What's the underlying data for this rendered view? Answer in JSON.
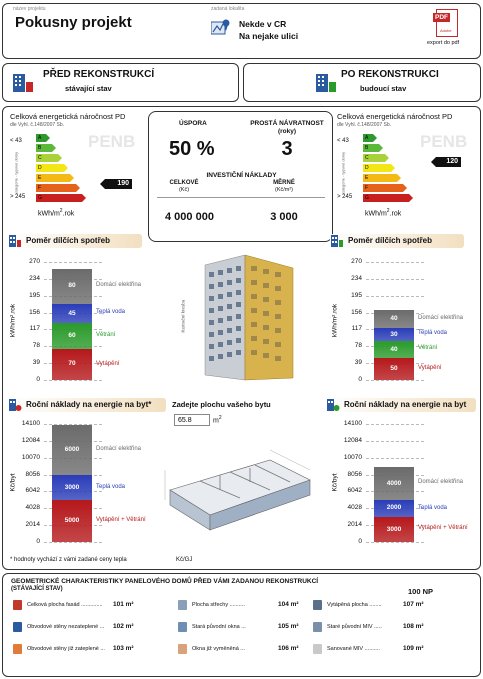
{
  "header": {
    "project_caption": "název projektu",
    "project_name": "Pokusny projekt",
    "location_caption": "zadaná lokalita",
    "location_line1": "Nekde v CR",
    "location_line2": "Na nejake ulici",
    "export_label": "export do pdf",
    "pdf_icon_text": "PDF",
    "adobe_text": "Adobe"
  },
  "sections": {
    "before_title": "PŘED REKONSTRUKCÍ",
    "before_subtitle": "stávající stav",
    "after_title": "PO REKONSTRUKCI",
    "after_subtitle": "budoucí stav"
  },
  "energy": {
    "title": "Celková energetická náročnost PD",
    "decree": "dle Vyhl. č.148/2007 Sb.",
    "class_top": "< 43",
    "class_bottom": "> 245",
    "side_label": "kategorie - typové domy",
    "watermark": "PENB",
    "unit": "kWh/m",
    "unit_tail": ".rok",
    "classes": [
      "A",
      "B",
      "C",
      "D",
      "E",
      "F",
      "G"
    ],
    "class_colors": [
      "#2e9a2e",
      "#5bb83a",
      "#a8d13a",
      "#f2e614",
      "#f5b915",
      "#e6621b",
      "#c81f1f"
    ],
    "before_value": "190",
    "after_value": "120"
  },
  "summary": {
    "savings_label": "ÚSPORA",
    "payback_label": "PROSTÁ NÁVRATNOST",
    "payback_unit": "(roky)",
    "savings_value": "50 %",
    "payback_value": "3",
    "investment_label": "INVESTIČNÍ NÁKLADY",
    "total_label": "CELKOVÉ",
    "total_unit": "(Kč)",
    "specific_label": "MĚRNÉ",
    "specific_unit": "(Kč/m²)",
    "total_value": "4 000 000",
    "specific_value": "3 000"
  },
  "consumption": {
    "title": "Poměr dílčích spotřeb",
    "ylabel": "kWh/m².rok",
    "yticks": [
      "270",
      "234",
      "195",
      "156",
      "117",
      "78",
      "39",
      "0"
    ],
    "legend": [
      "Domácí elektřina",
      "Teplá voda",
      "Větrání",
      "Vytápění"
    ],
    "image_caption": "ilustrační kresba"
  },
  "costs": {
    "title": "Roční náklady na energie na byt",
    "title_before_suffix": "*",
    "ylabel": "Kč/byt",
    "yticks": [
      "14100",
      "12084",
      "10070",
      "8056",
      "6042",
      "4028",
      "2014",
      "0"
    ],
    "legend": [
      "Domácí elektřina",
      "Teplá voda",
      "Vytápění + Větrání"
    ],
    "area_prompt": "Zadejte plochu vašeho bytu",
    "area_value": "65.8",
    "area_unit": "m",
    "footnote": "* hodnoty vychází z vámi zadané ceny tepla",
    "currency_per": "Kč/GJ"
  },
  "chart_data": [
    {
      "type": "bar",
      "stacked": true,
      "title": "Poměr dílčích spotřeb",
      "ylabel": "kWh/m².rok",
      "ylim": [
        0,
        270
      ],
      "categories": [
        "PŘED REKONSTRUKCÍ"
      ],
      "series": [
        {
          "name": "Vytápění",
          "values": [
            70
          ],
          "color": "#b5181b"
        },
        {
          "name": "Větrání",
          "values": [
            60
          ],
          "color": "#2a9a2a"
        },
        {
          "name": "Teplá voda",
          "values": [
            45
          ],
          "color": "#2a3db8"
        },
        {
          "name": "Domácí elektřina",
          "values": [
            80
          ],
          "color": "#6b6b6b"
        }
      ]
    },
    {
      "type": "bar",
      "stacked": true,
      "title": "Poměr dílčích spotřeb",
      "ylabel": "kWh/m².rok",
      "ylim": [
        0,
        270
      ],
      "categories": [
        "PO REKONSTRUKCI"
      ],
      "series": [
        {
          "name": "Vytápění",
          "values": [
            50
          ],
          "color": "#b5181b"
        },
        {
          "name": "Větrání",
          "values": [
            40
          ],
          "color": "#2a9a2a"
        },
        {
          "name": "Teplá voda",
          "values": [
            30
          ],
          "color": "#2a3db8"
        },
        {
          "name": "Domácí elektřina",
          "values": [
            40
          ],
          "color": "#6b6b6b"
        }
      ]
    },
    {
      "type": "bar",
      "stacked": true,
      "title": "Roční náklady na energie na byt",
      "ylabel": "Kč/byt",
      "ylim": [
        0,
        14100
      ],
      "categories": [
        "PŘED REKONSTRUKCÍ"
      ],
      "series": [
        {
          "name": "Vytápění + Větrání",
          "values": [
            5000
          ],
          "color": "#b5181b"
        },
        {
          "name": "Teplá voda",
          "values": [
            3000
          ],
          "color": "#2a3db8"
        },
        {
          "name": "Domácí elektřina",
          "values": [
            6000
          ],
          "color": "#6b6b6b"
        }
      ]
    },
    {
      "type": "bar",
      "stacked": true,
      "title": "Roční náklady na energie na byt",
      "ylabel": "Kč/byt",
      "ylim": [
        0,
        14100
      ],
      "categories": [
        "PO REKONSTRUKCI"
      ],
      "series": [
        {
          "name": "Vytápění + Větrání",
          "values": [
            3000
          ],
          "color": "#b5181b"
        },
        {
          "name": "Teplá voda",
          "values": [
            2000
          ],
          "color": "#2a3db8"
        },
        {
          "name": "Domácí elektřina",
          "values": [
            4000
          ],
          "color": "#6b6b6b"
        }
      ]
    }
  ],
  "geometry": {
    "title": "GEOMETRICKÉ CHARAKTERISTIKY PANELOVÉHO DOMŮ PŘED VÁMI ZADANOU REKONSTRUKCÍ",
    "subtitle": "(STÁVAJÍCÍ STAV)",
    "floors": "100 NP",
    "items": [
      {
        "label": "Celková plocha fasád ..............",
        "value": "101 m²",
        "color": "#c0392b"
      },
      {
        "label": "Plocha střechy ..........",
        "value": "104 m²",
        "color": "#8aa0b8"
      },
      {
        "label": "Vytápěná plocha ........",
        "value": "107 m²",
        "color": "#5a6f8a"
      },
      {
        "label": "Obvodové stěny nezateplené ...",
        "value": "102 m²",
        "color": "#2a5aa0"
      },
      {
        "label": "Stará původní okna ...",
        "value": "105 m²",
        "color": "#6d8fb3"
      },
      {
        "label": "Staré původní MIV .....",
        "value": "108 m²",
        "color": "#7a8fa8"
      },
      {
        "label": "Obvodové stěny již zateplené ...",
        "value": "103 m²",
        "color": "#e07b39"
      },
      {
        "label": "Okna již vyměněná ...",
        "value": "106 m²",
        "color": "#d9a27a"
      },
      {
        "label": "Sanované MIV ..........",
        "value": "109 m²",
        "color": "#c9c9c9"
      }
    ]
  }
}
